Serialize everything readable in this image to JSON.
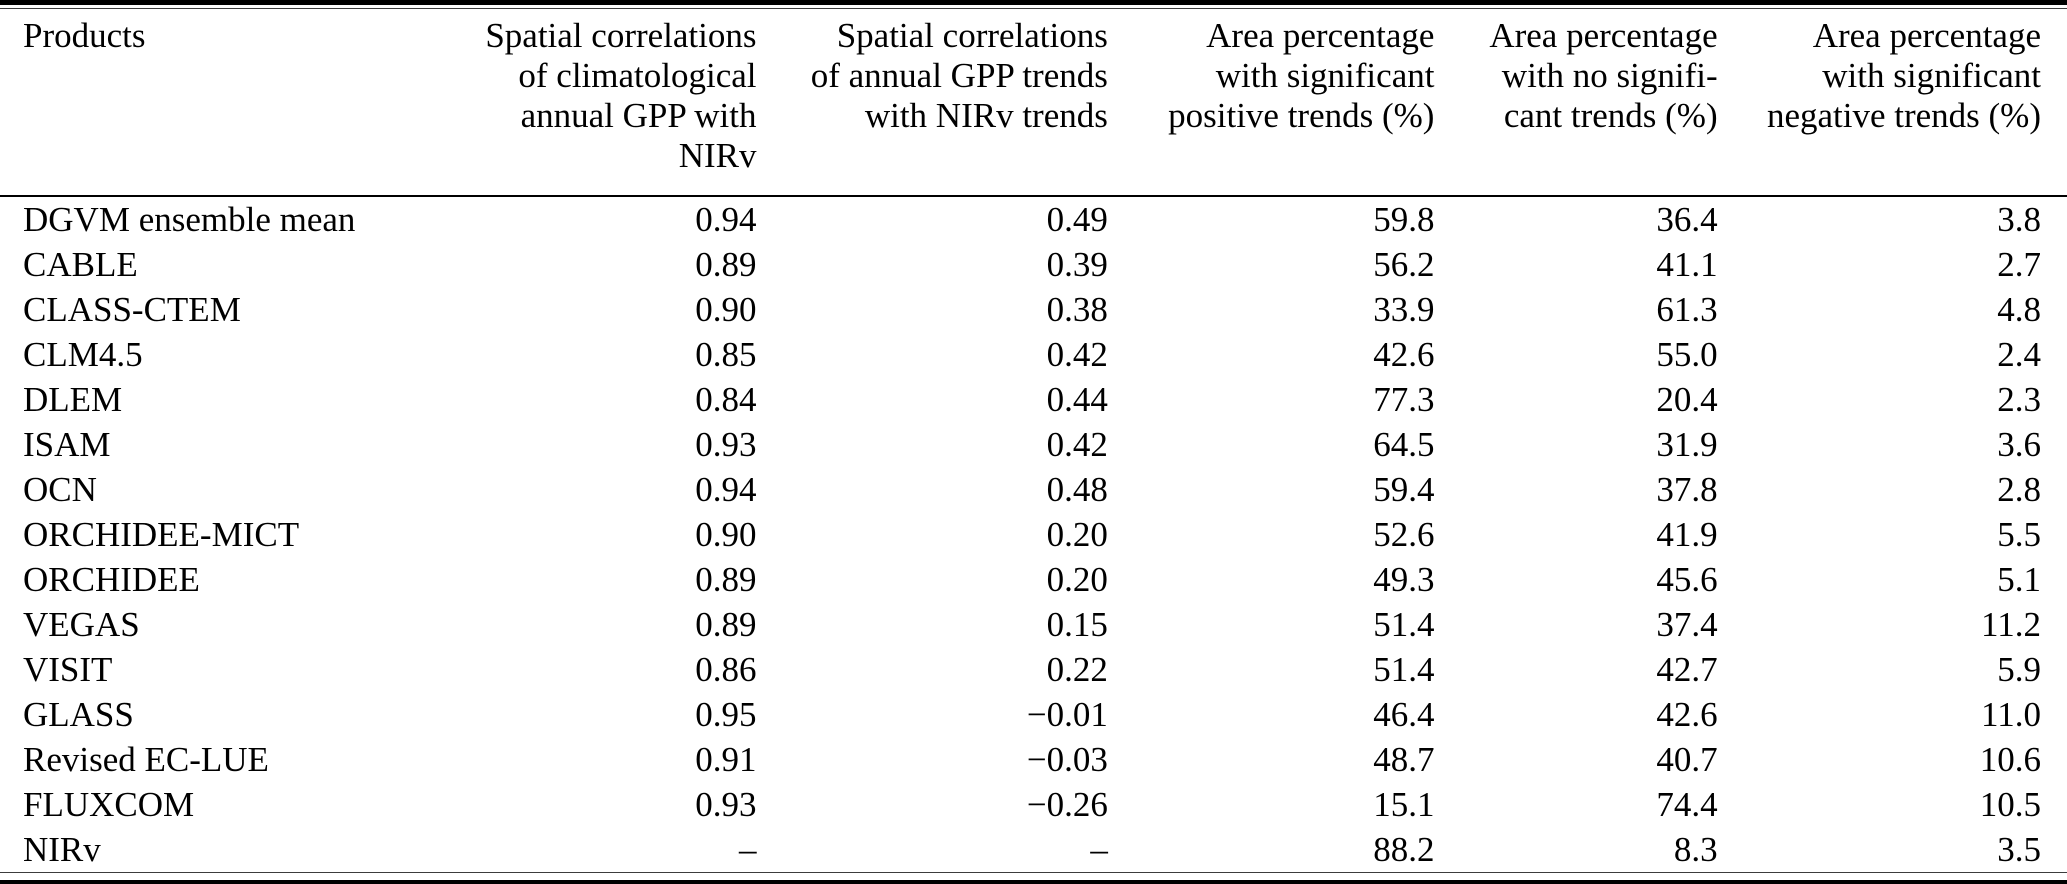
{
  "chart_data": {
    "type": "table",
    "columns": [
      "Products",
      "Spatial correlations\nof climatological\nannual GPP with NIRv",
      "Spatial correlations\nof annual GPP trends\nwith NIRv trends",
      "Area percentage\nwith significant\npositive trends (%)",
      "Area percentage\nwith no signifi-\ncant trends (%)",
      "Area percentage\nwith significant\nnegative trends (%)"
    ],
    "rows": [
      {
        "product": "DGVM ensemble mean",
        "values": [
          "0.94",
          "0.49",
          "59.8",
          "36.4",
          "3.8"
        ]
      },
      {
        "product": "CABLE",
        "values": [
          "0.89",
          "0.39",
          "56.2",
          "41.1",
          "2.7"
        ]
      },
      {
        "product": "CLASS-CTEM",
        "values": [
          "0.90",
          "0.38",
          "33.9",
          "61.3",
          "4.8"
        ]
      },
      {
        "product": "CLM4.5",
        "values": [
          "0.85",
          "0.42",
          "42.6",
          "55.0",
          "2.4"
        ]
      },
      {
        "product": "DLEM",
        "values": [
          "0.84",
          "0.44",
          "77.3",
          "20.4",
          "2.3"
        ]
      },
      {
        "product": "ISAM",
        "values": [
          "0.93",
          "0.42",
          "64.5",
          "31.9",
          "3.6"
        ]
      },
      {
        "product": "OCN",
        "values": [
          "0.94",
          "0.48",
          "59.4",
          "37.8",
          "2.8"
        ]
      },
      {
        "product": "ORCHIDEE-MICT",
        "values": [
          "0.90",
          "0.20",
          "52.6",
          "41.9",
          "5.5"
        ]
      },
      {
        "product": "ORCHIDEE",
        "values": [
          "0.89",
          "0.20",
          "49.3",
          "45.6",
          "5.1"
        ]
      },
      {
        "product": "VEGAS",
        "values": [
          "0.89",
          "0.15",
          "51.4",
          "37.4",
          "11.2"
        ]
      },
      {
        "product": "VISIT",
        "values": [
          "0.86",
          "0.22",
          "51.4",
          "42.7",
          "5.9"
        ]
      },
      {
        "product": "GLASS",
        "values": [
          "0.95",
          "−0.01",
          "46.4",
          "42.6",
          "11.0"
        ]
      },
      {
        "product": "Revised EC-LUE",
        "values": [
          "0.91",
          "−0.03",
          "48.7",
          "40.7",
          "10.6"
        ]
      },
      {
        "product": "FLUXCOM",
        "values": [
          "0.93",
          "−0.26",
          "15.1",
          "74.4",
          "10.5"
        ]
      },
      {
        "product": "NIRv",
        "values": [
          "–",
          "–",
          "88.2",
          "8.3",
          "3.5"
        ]
      }
    ]
  },
  "colors": {
    "text": "#000000",
    "background": "#ffffff",
    "rule": "#000000"
  }
}
